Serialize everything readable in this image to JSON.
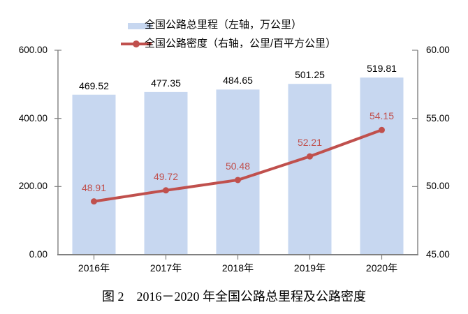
{
  "chart_data": {
    "type": "bar",
    "subtype": "bar-line-combo",
    "categories": [
      "2016年",
      "2017年",
      "2018年",
      "2019年",
      "2020年"
    ],
    "series": [
      {
        "name": "全国公路总里程（左轴，万公里）",
        "type": "bar",
        "axis": "left",
        "values": [
          469.52,
          477.35,
          484.65,
          501.25,
          519.81
        ],
        "labels": [
          "469.52",
          "477.35",
          "484.65",
          "501.25",
          "519.81"
        ],
        "color": "#C7D7F0"
      },
      {
        "name": "全国公路密度（右轴，公里/百平方公里）",
        "type": "line",
        "axis": "right",
        "values": [
          48.91,
          49.72,
          50.48,
          52.21,
          54.15
        ],
        "labels": [
          "48.91",
          "49.72",
          "50.48",
          "52.21",
          "54.15"
        ],
        "color": "#C0504D"
      }
    ],
    "left_axis": {
      "min": 0,
      "max": 600,
      "tick_labels": [
        "0.00",
        "200.00",
        "400.00",
        "600.00"
      ]
    },
    "right_axis": {
      "min": 45,
      "max": 60,
      "tick_labels": [
        "45.00",
        "50.00",
        "55.00",
        "60.00"
      ]
    },
    "grid": false,
    "legend_position": "top",
    "caption": "图 2　2016－2020 年全国公路总里程及公路密度"
  },
  "colors": {
    "bar_fill": "#C7D7F0",
    "line": "#C0504D",
    "value_label_bar": "#000000",
    "value_label_line": "#C0504D",
    "axis_line": "#808080",
    "text": "#000000"
  }
}
